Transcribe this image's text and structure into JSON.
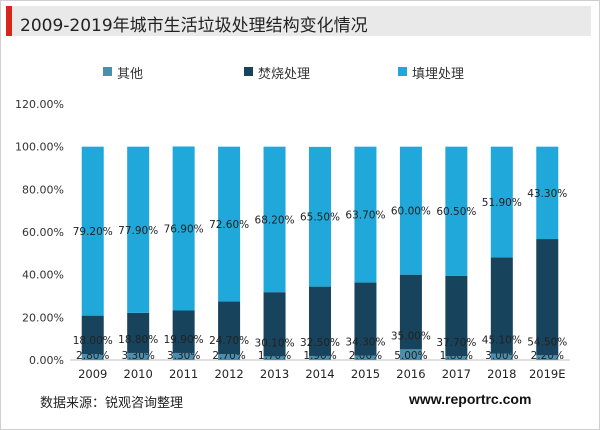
{
  "title": "2009-2019年城市生活垃圾处理结构变化情况",
  "source": "数据来源：锐观咨询整理",
  "website": "www.reportrc.com",
  "colors": {
    "other": "#4a8fae",
    "incineration": "#17435c",
    "landfill": "#20a8da",
    "accent": "#d9261c"
  },
  "chart_data": {
    "type": "bar",
    "stacked": true,
    "categories": [
      "2009",
      "2010",
      "2011",
      "2012",
      "2013",
      "2014",
      "2015",
      "2016",
      "2017",
      "2018",
      "2019E"
    ],
    "series": [
      {
        "name": "其他",
        "values": [
          2.8,
          3.3,
          3.3,
          2.7,
          1.7,
          1.9,
          2.0,
          5.0,
          1.8,
          3.0,
          2.2
        ],
        "labels": [
          "2.80%",
          "3.30%",
          "3.30%",
          "2.70%",
          "1.70%",
          "1.90%",
          "2.00%",
          "5.00%",
          "1.80%",
          "3.00%",
          "2.20%"
        ]
      },
      {
        "name": "焚烧处理",
        "values": [
          18.0,
          18.8,
          19.9,
          24.7,
          30.1,
          32.5,
          34.3,
          35.0,
          37.7,
          45.1,
          54.5
        ],
        "labels": [
          "18.00%",
          "18.80%",
          "19.90%",
          "24.70%",
          "30.10%",
          "32.50%",
          "34.30%",
          "35.00%",
          "37.70%",
          "45.10%",
          "54.50%"
        ]
      },
      {
        "name": "填埋处理",
        "values": [
          79.2,
          77.9,
          76.9,
          72.6,
          68.2,
          65.5,
          63.7,
          60.0,
          60.5,
          51.9,
          43.3
        ],
        "labels": [
          "79.20%",
          "77.90%",
          "76.90%",
          "72.60%",
          "68.20%",
          "65.50%",
          "63.70%",
          "60.00%",
          "60.50%",
          "51.90%",
          "43.30%"
        ]
      }
    ],
    "ylim": [
      0,
      120
    ],
    "yticks": [
      0,
      20,
      40,
      60,
      80,
      100,
      120
    ],
    "ytick_labels": [
      "0.00%",
      "20.00%",
      "40.00%",
      "60.00%",
      "80.00%",
      "100.00%",
      "120.00%"
    ],
    "grid": false,
    "legend_position": "top"
  }
}
